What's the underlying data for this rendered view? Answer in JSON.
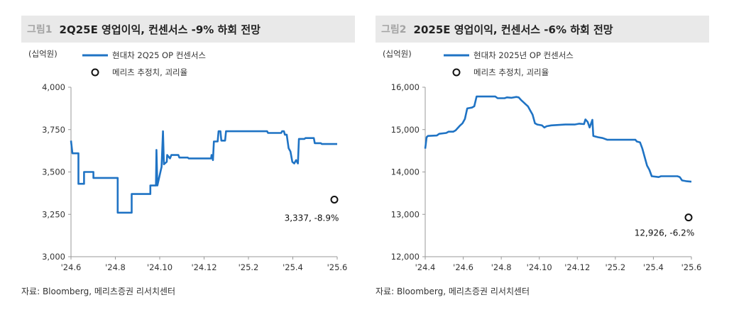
{
  "chart_data": [
    {
      "type": "line",
      "figure_label": "그림1",
      "title": "2Q25E 영업이익, 컨센서스 -9% 하회 전망",
      "unit": "(십억원)",
      "x_ticks": [
        "'24.6",
        "'24.8",
        "'24.10",
        "'24.12",
        "'25.2",
        "'25.4",
        "'25.6"
      ],
      "x_range": [
        "2024-06",
        "2025-06"
      ],
      "ylim": [
        3000,
        4000
      ],
      "y_ticks": [
        3000,
        3250,
        3500,
        3750,
        4000
      ],
      "y_tick_labels": [
        "3,000",
        "3,250",
        "3,500",
        "3,750",
        "4,000"
      ],
      "series": [
        {
          "name": "현대차 2Q25 OP 컨센서스",
          "color": "#1f73c4",
          "points": [
            [
              0.0,
              3685
            ],
            [
              0.3,
              3610
            ],
            [
              1.6,
              3610
            ],
            [
              1.6,
              3430
            ],
            [
              2.8,
              3430
            ],
            [
              2.8,
              3500
            ],
            [
              4.8,
              3500
            ],
            [
              4.8,
              3465
            ],
            [
              10.0,
              3465
            ],
            [
              10.0,
              3260
            ],
            [
              13.0,
              3260
            ],
            [
              13.0,
              3370
            ],
            [
              17.0,
              3370
            ],
            [
              17.0,
              3420
            ],
            [
              18.2,
              3420
            ],
            [
              18.3,
              3630
            ],
            [
              18.5,
              3420
            ],
            [
              19.4,
              3530
            ],
            [
              19.7,
              3740
            ],
            [
              19.9,
              3545
            ],
            [
              20.5,
              3560
            ],
            [
              20.6,
              3600
            ],
            [
              21.2,
              3580
            ],
            [
              21.5,
              3600
            ],
            [
              23.0,
              3600
            ],
            [
              23.2,
              3585
            ],
            [
              25.0,
              3585
            ],
            [
              25.2,
              3580
            ],
            [
              30.0,
              3580
            ],
            [
              30.1,
              3600
            ],
            [
              30.4,
              3570
            ],
            [
              30.6,
              3680
            ],
            [
              31.4,
              3680
            ],
            [
              31.6,
              3740
            ],
            [
              32.0,
              3740
            ],
            [
              32.2,
              3685
            ],
            [
              33.0,
              3685
            ],
            [
              33.2,
              3740
            ],
            [
              42.0,
              3740
            ],
            [
              42.2,
              3730
            ],
            [
              45.0,
              3730
            ],
            [
              45.2,
              3740
            ],
            [
              45.6,
              3740
            ],
            [
              45.8,
              3720
            ],
            [
              46.2,
              3720
            ],
            [
              46.6,
              3640
            ],
            [
              47.0,
              3620
            ],
            [
              47.4,
              3560
            ],
            [
              47.8,
              3550
            ],
            [
              48.2,
              3570
            ],
            [
              48.6,
              3550
            ],
            [
              48.8,
              3695
            ],
            [
              50.0,
              3695
            ],
            [
              50.2,
              3700
            ],
            [
              52.0,
              3700
            ],
            [
              52.2,
              3670
            ],
            [
              53.5,
              3670
            ],
            [
              53.7,
              3665
            ],
            [
              57.0,
              3665
            ]
          ]
        },
        {
          "name": "메리츠 추정치, 괴리율",
          "marker": "circle",
          "x": 57.0,
          "value": 3337,
          "label": "3,337, -8.9%"
        }
      ]
    },
    {
      "type": "line",
      "figure_label": "그림2",
      "title": "2025E 영업이익, 컨센서스 -6% 하회 전망",
      "unit": "(십억원)",
      "x_ticks": [
        "'24.4",
        "'24.6",
        "'24.8",
        "'24.10",
        "'24.12",
        "'25.2",
        "'25.4",
        "'25.6"
      ],
      "x_range": [
        "2024-04",
        "2025-06"
      ],
      "ylim": [
        12000,
        16000
      ],
      "y_ticks": [
        12000,
        13000,
        14000,
        15000,
        16000
      ],
      "y_tick_labels": [
        "12,000",
        "13,000",
        "14,000",
        "15,000",
        "16,000"
      ],
      "series": [
        {
          "name": "현대차 2025년 OP 컨센서스",
          "color": "#1f73c4",
          "points": [
            [
              0.0,
              14550
            ],
            [
              0.3,
              14820
            ],
            [
              0.6,
              14850
            ],
            [
              2.5,
              14860
            ],
            [
              3.0,
              14900
            ],
            [
              4.5,
              14920
            ],
            [
              5.0,
              14950
            ],
            [
              6.0,
              14950
            ],
            [
              6.5,
              14980
            ],
            [
              7.5,
              15100
            ],
            [
              8.0,
              15150
            ],
            [
              8.5,
              15250
            ],
            [
              9.0,
              15500
            ],
            [
              10.0,
              15520
            ],
            [
              10.5,
              15550
            ],
            [
              11.0,
              15780
            ],
            [
              15.0,
              15780
            ],
            [
              15.5,
              15740
            ],
            [
              17.0,
              15740
            ],
            [
              17.5,
              15760
            ],
            [
              18.5,
              15750
            ],
            [
              19.5,
              15770
            ],
            [
              20.0,
              15760
            ],
            [
              20.5,
              15700
            ],
            [
              21.0,
              15650
            ],
            [
              21.5,
              15600
            ],
            [
              22.0,
              15550
            ],
            [
              22.5,
              15450
            ],
            [
              23.0,
              15350
            ],
            [
              23.5,
              15150
            ],
            [
              24.0,
              15120
            ],
            [
              25.0,
              15100
            ],
            [
              25.5,
              15050
            ],
            [
              26.0,
              15080
            ],
            [
              27.0,
              15100
            ],
            [
              30.0,
              15120
            ],
            [
              32.0,
              15120
            ],
            [
              33.0,
              15140
            ],
            [
              34.0,
              15130
            ],
            [
              34.3,
              15240
            ],
            [
              34.8,
              15180
            ],
            [
              35.2,
              15050
            ],
            [
              35.8,
              15230
            ],
            [
              36.0,
              14850
            ],
            [
              37.0,
              14820
            ],
            [
              38.0,
              14800
            ],
            [
              39.0,
              14760
            ],
            [
              45.0,
              14760
            ],
            [
              45.3,
              14720
            ],
            [
              46.0,
              14700
            ],
            [
              46.5,
              14550
            ],
            [
              47.0,
              14350
            ],
            [
              47.5,
              14150
            ],
            [
              48.0,
              14050
            ],
            [
              48.5,
              13900
            ],
            [
              50.0,
              13880
            ],
            [
              50.5,
              13900
            ],
            [
              54.0,
              13900
            ],
            [
              54.5,
              13880
            ],
            [
              55.0,
              13800
            ],
            [
              56.0,
              13780
            ],
            [
              57.0,
              13770
            ]
          ]
        },
        {
          "name": "메리츠 추정치, 괴리율",
          "marker": "circle",
          "x": 57.0,
          "value": 12926,
          "label": "12,926, -6.2%"
        }
      ]
    }
  ],
  "sources": [
    "자료: Bloomberg, 메리츠증권 리서치센터",
    "자료: Bloomberg, 메리츠증권 리서치센터"
  ]
}
